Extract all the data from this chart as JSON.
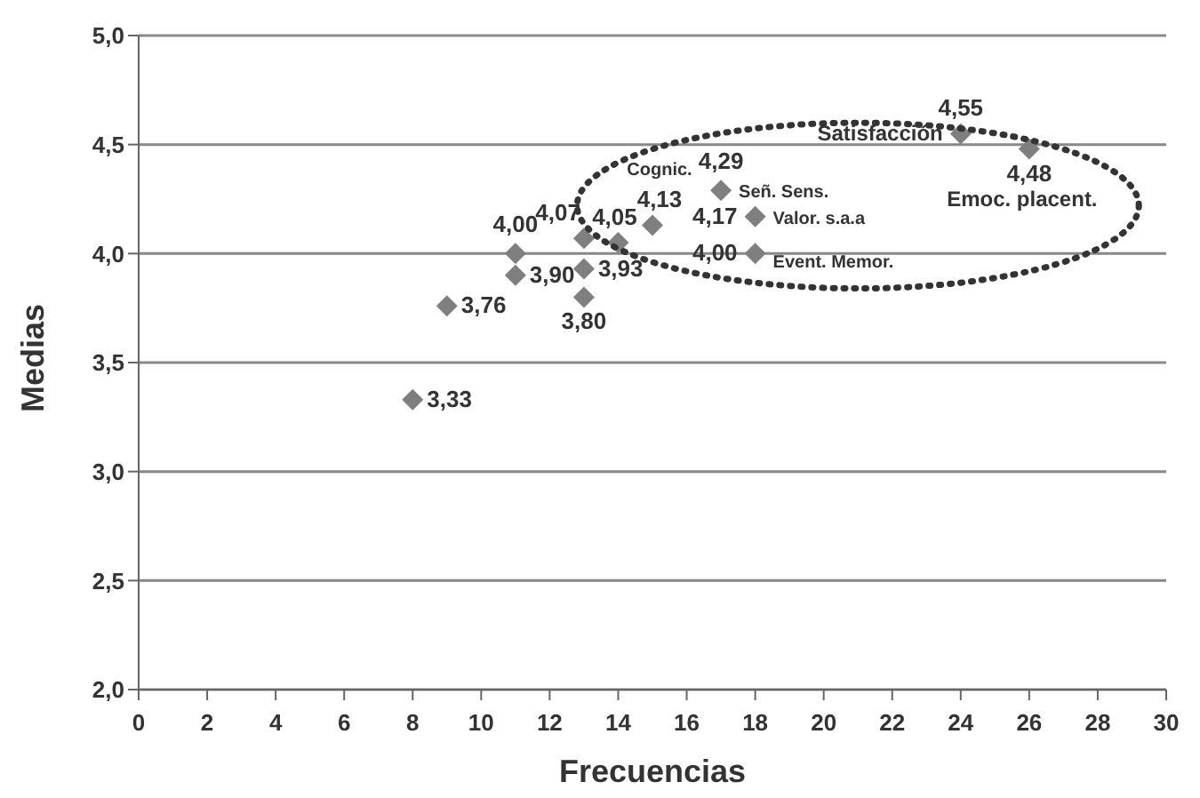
{
  "chart_data": {
    "type": "scatter",
    "xlabel": "Frecuencias",
    "ylabel": "Medias",
    "x": [
      8,
      9,
      11,
      11,
      13,
      13,
      13,
      14,
      15,
      17,
      18,
      18,
      24,
      26
    ],
    "series": [
      {
        "color": "#7f7f7f",
        "values": [
          3.33,
          3.76,
          4.0,
          3.9,
          4.07,
          3.93,
          3.8,
          4.05,
          4.13,
          4.29,
          4.17,
          4.0,
          4.55,
          4.48
        ],
        "value_labels": [
          "3,33",
          "3,76",
          "4,00",
          "3,90",
          "4,07",
          "3,93",
          "3,80",
          "4,05",
          "4,13",
          "4,29",
          "4,17",
          "4,00",
          "4,55",
          "4,48"
        ]
      }
    ],
    "annotations": [
      {
        "text": "Cognic.",
        "x": 15,
        "y": 4.13
      },
      {
        "text": "Señ. Sens.",
        "x": 17,
        "y": 4.29
      },
      {
        "text": "Valor. s.a.a",
        "x": 18,
        "y": 4.17
      },
      {
        "text": "Event. Memor.",
        "x": 18,
        "y": 4.0
      },
      {
        "text": "Satisfacción",
        "x": 24,
        "y": 4.55
      },
      {
        "text": "Emoc. placent.",
        "x": 26,
        "y": 4.48
      }
    ],
    "xlim": [
      0,
      30
    ],
    "xticks": [
      0,
      2,
      4,
      6,
      8,
      10,
      12,
      14,
      16,
      18,
      20,
      22,
      24,
      26,
      28,
      30
    ],
    "ylim": [
      2,
      5
    ],
    "yticks": [
      {
        "value": 2,
        "label": "2,0"
      },
      {
        "value": 2.5,
        "label": "2,5"
      },
      {
        "value": 3,
        "label": "3,0"
      },
      {
        "value": 3.5,
        "label": "3,5"
      },
      {
        "value": 4,
        "label": "4,0"
      },
      {
        "value": 4.5,
        "label": "4,5"
      },
      {
        "value": 5,
        "label": "5,0"
      }
    ],
    "grid": "y",
    "marker": "diamond",
    "legend": false
  }
}
